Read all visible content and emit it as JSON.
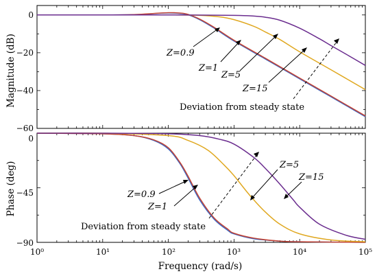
{
  "chart_data": [
    {
      "type": "line",
      "panel": "magnitude",
      "ylabel": "Magnitude (dB)",
      "xscale": "log",
      "xlim": [
        1,
        100000
      ],
      "ylim": [
        -60,
        5
      ],
      "yticks": [
        "0",
        "−20",
        "−40",
        "−60"
      ],
      "series": [
        {
          "color": "#3a66c4",
          "x": [
            1,
            10,
            30,
            60,
            100,
            150,
            200,
            300,
            500,
            1000,
            3000,
            10000,
            30000,
            100000
          ],
          "y": [
            0,
            0,
            0.2,
            0.7,
            1.0,
            0.8,
            0.1,
            -2.5,
            -7,
            -13.8,
            -23.3,
            -33.8,
            -43.3,
            -53.8
          ]
        },
        {
          "color": "#c44434",
          "x": [
            1,
            10,
            30,
            60,
            100,
            150,
            200,
            300,
            500,
            1000,
            3000,
            10000,
            30000,
            100000
          ],
          "y": [
            0,
            0,
            0.2,
            0.8,
            1.2,
            1.0,
            0.3,
            -2.2,
            -6.6,
            -13.4,
            -22.9,
            -33.4,
            -42.9,
            -53.4
          ]
        },
        {
          "color": "#e0a820",
          "x": [
            1,
            10,
            100,
            300,
            600,
            1000,
            2000,
            3000,
            5000,
            10000,
            30000,
            100000
          ],
          "y": [
            0,
            0,
            0,
            -0.2,
            -1,
            -2.5,
            -6,
            -9,
            -13,
            -19.5,
            -29,
            -39.5
          ]
        },
        {
          "color": "#6a2c8e",
          "x": [
            1,
            10,
            100,
            1000,
            2000,
            3000,
            5000,
            10000,
            20000,
            30000,
            50000,
            100000
          ],
          "y": [
            0,
            0,
            0,
            -0.2,
            -0.6,
            -1.2,
            -2.8,
            -7,
            -12.6,
            -16.2,
            -20.6,
            -26.7
          ]
        }
      ],
      "annotations": {
        "z09": "Z=0.9",
        "z1": "Z=1",
        "z5": "Z=5",
        "z15": "Z=15",
        "deviation": "Deviation from steady state"
      }
    },
    {
      "type": "line",
      "panel": "phase",
      "ylabel": "Phase (deg)",
      "xlabel": "Frequency (rad/s)",
      "xscale": "log",
      "xlim": [
        1,
        100000
      ],
      "ylim": [
        -90,
        0
      ],
      "yticks": [
        "0",
        "−45",
        "−90"
      ],
      "xticks": [
        "10⁰",
        "10¹",
        "10²",
        "10³",
        "10⁴",
        "10⁵"
      ],
      "series": [
        {
          "color": "#3a66c4",
          "x": [
            1,
            10,
            30,
            60,
            100,
            150,
            200,
            300,
            500,
            800,
            1000,
            2000,
            5000,
            10000,
            100000
          ],
          "y": [
            0,
            -0.5,
            -2,
            -6,
            -13,
            -25,
            -37,
            -55,
            -71,
            -80,
            -83,
            -87,
            -89,
            -89.5,
            -90
          ]
        },
        {
          "color": "#c44434",
          "x": [
            1,
            10,
            30,
            60,
            100,
            150,
            200,
            300,
            500,
            800,
            1000,
            2000,
            5000,
            10000,
            100000
          ],
          "y": [
            0,
            -0.5,
            -2,
            -5.5,
            -12,
            -24,
            -35.5,
            -53.5,
            -70,
            -79,
            -82.5,
            -86.5,
            -89,
            -89.5,
            -90
          ]
        },
        {
          "color": "#e0a820",
          "x": [
            1,
            10,
            100,
            200,
            400,
            700,
            1000,
            1500,
            2000,
            3000,
            5000,
            10000,
            30000,
            100000
          ],
          "y": [
            0,
            0,
            -2,
            -6,
            -14,
            -26,
            -35,
            -47,
            -55,
            -65,
            -75,
            -83,
            -88,
            -89.5
          ]
        },
        {
          "color": "#6a2c8e",
          "x": [
            1,
            10,
            100,
            300,
            600,
            1000,
            2000,
            3000,
            5000,
            8000,
            10000,
            20000,
            50000,
            100000
          ],
          "y": [
            0,
            0,
            -0.5,
            -2,
            -5,
            -9,
            -20,
            -29,
            -42,
            -55,
            -61,
            -75,
            -84,
            -87.5
          ]
        }
      ],
      "annotations": {
        "z09": "Z=0.9",
        "z1": "Z=1",
        "z5": "Z=5",
        "z15": "Z=15",
        "deviation": "Deviation from steady state"
      }
    }
  ]
}
